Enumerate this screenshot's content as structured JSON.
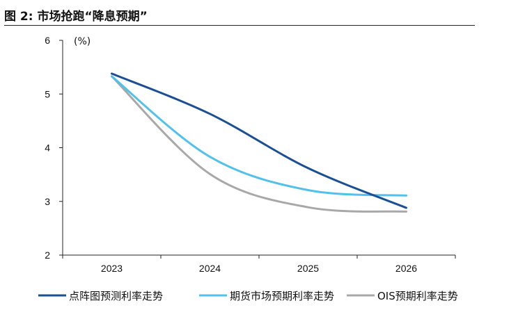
{
  "header": {
    "title": "图 2:  市场抢跑“降息预期”"
  },
  "chart_data": {
    "type": "line",
    "unit_label": "(%)",
    "categories": [
      "2023",
      "2024",
      "2025",
      "2026"
    ],
    "ylim": [
      2,
      6
    ],
    "yticks": [
      "2",
      "3",
      "4",
      "5",
      "6"
    ],
    "grid": false,
    "legend_position": "bottom",
    "series": [
      {
        "name": "点阵图预测利率走势",
        "color": "#1b4f93",
        "values": [
          5.38,
          4.63,
          3.62,
          2.88
        ]
      },
      {
        "name": "期货市场预期利率走势",
        "color": "#4fc1ea",
        "values": [
          5.33,
          3.83,
          3.21,
          3.11
        ]
      },
      {
        "name": "OIS预期利率走势",
        "color": "#a8a8a8",
        "values": [
          5.33,
          3.51,
          2.89,
          2.81
        ]
      }
    ]
  }
}
